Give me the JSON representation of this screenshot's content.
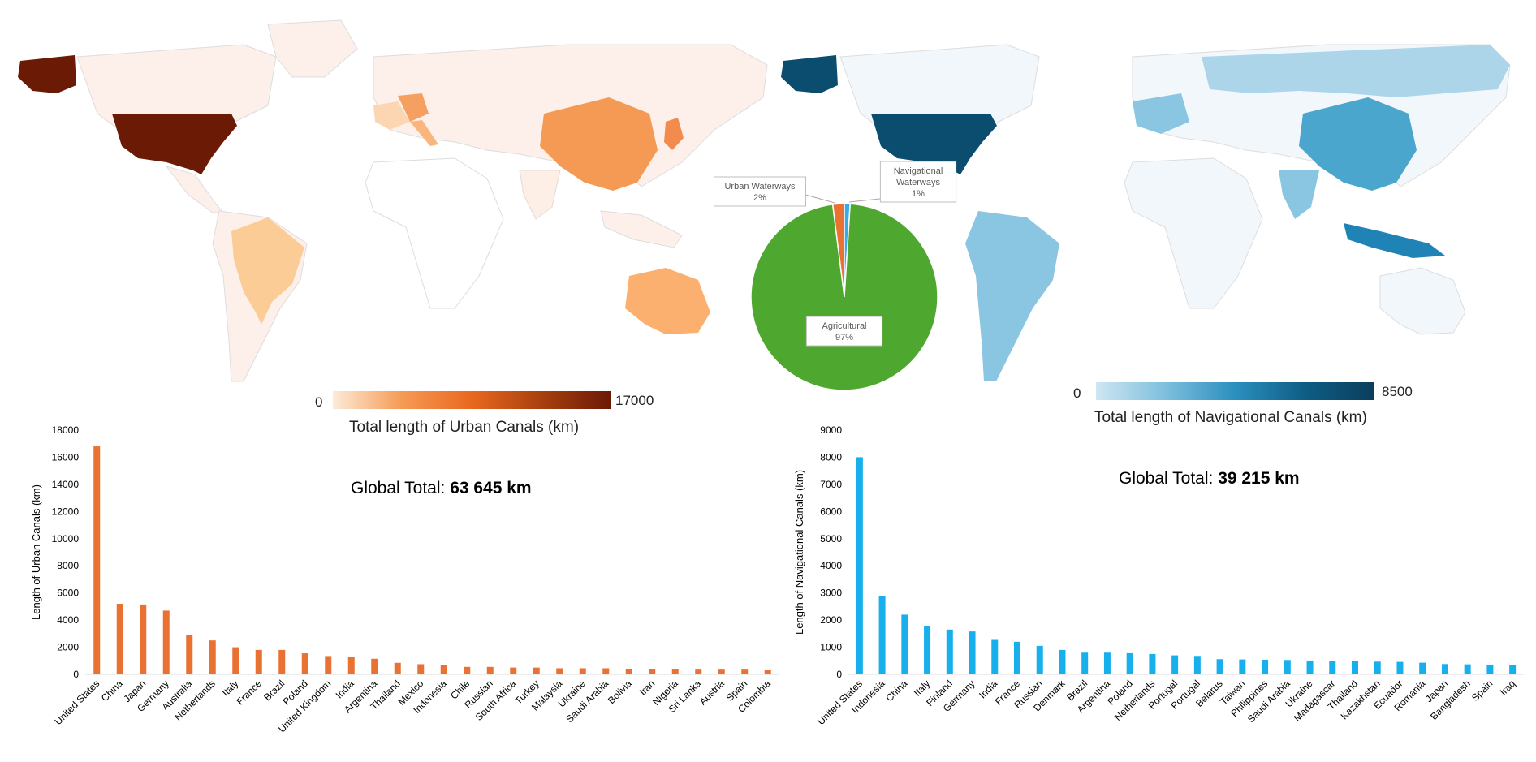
{
  "maps": {
    "urban": {
      "colorbar": {
        "min": "0",
        "max": "17000",
        "label": "Total length of Urban Canals (km)",
        "colors": [
          "#fdebd8",
          "#f59a54",
          "#e9681f",
          "#a8400f",
          "#6b1a06"
        ]
      }
    },
    "navigational": {
      "colorbar": {
        "min": "0",
        "max": "8500",
        "label": "Total length of Navigational Canals (km)",
        "colors": [
          "#cfe6f2",
          "#7dbfdd",
          "#2c8fbe",
          "#0e5e86",
          "#0b3d5c"
        ]
      }
    }
  },
  "totals": {
    "urban": {
      "prefix": "Global Total: ",
      "value": "63 645 km"
    },
    "navigational": {
      "prefix": "Global Total: ",
      "value": "39 215 km"
    }
  },
  "chart_data": [
    {
      "type": "pie",
      "labels": [
        "Agricultural",
        "Urban Waterways",
        "Navigational Waterways"
      ],
      "values": [
        97,
        2,
        1
      ],
      "data_labels": [
        "97%",
        "2%",
        "1%"
      ],
      "colors": [
        "#4ea72e",
        "#e97132",
        "#3fa9e6"
      ]
    },
    {
      "type": "bar",
      "ylabel": "Length of Urban Canals (km)",
      "ylim": [
        0,
        18000
      ],
      "yticks": [
        0,
        2000,
        4000,
        6000,
        8000,
        10000,
        12000,
        14000,
        16000,
        18000
      ],
      "color": "#e97132",
      "categories": [
        "United States",
        "China",
        "Japan",
        "Germany",
        "Australia",
        "Netherlands",
        "Italy",
        "France",
        "Brazil",
        "Poland",
        "United Kingdom",
        "India",
        "Argentina",
        "Thailand",
        "Mexico",
        "Indonesia",
        "Chile",
        "Russian",
        "South Africa",
        "Turkey",
        "Malaysia",
        "Ukraine",
        "Saudi Arabia",
        "Bolivia",
        "Iran",
        "Nigeria",
        "Sri Lanka",
        "Austria",
        "Spain",
        "Colombia"
      ],
      "values": [
        16800,
        5200,
        5150,
        4700,
        2900,
        2500,
        2000,
        1800,
        1800,
        1550,
        1350,
        1300,
        1150,
        850,
        750,
        700,
        550,
        550,
        500,
        500,
        450,
        450,
        450,
        400,
        400,
        400,
        350,
        350,
        350,
        300
      ]
    },
    {
      "type": "bar",
      "ylabel": "Length of Navigational Canals (km)",
      "ylim": [
        0,
        9000
      ],
      "yticks": [
        0,
        1000,
        2000,
        3000,
        4000,
        5000,
        6000,
        7000,
        8000,
        9000
      ],
      "color": "#17b0ec",
      "categories": [
        "United States",
        "Indonesia",
        "China",
        "Italy",
        "Finland",
        "Germany",
        "India",
        "France",
        "Russian",
        "Denmark",
        "Brazil",
        "Argentina",
        "Poland",
        "Netherlands",
        "Portugal",
        "Portugal",
        "Belarus",
        "Taiwan",
        "Philippines",
        "Saudi Arabia",
        "Ukraine",
        "Madagascar",
        "Thailand",
        "Kazakhstan",
        "Ecuador",
        "Romania",
        "Japan",
        "Bangladesh",
        "Spain",
        "Iraq"
      ],
      "values": [
        8000,
        2900,
        2200,
        1780,
        1650,
        1580,
        1270,
        1200,
        1050,
        900,
        800,
        800,
        780,
        750,
        700,
        680,
        560,
        550,
        540,
        530,
        510,
        500,
        490,
        470,
        460,
        430,
        380,
        370,
        360,
        340
      ]
    }
  ]
}
